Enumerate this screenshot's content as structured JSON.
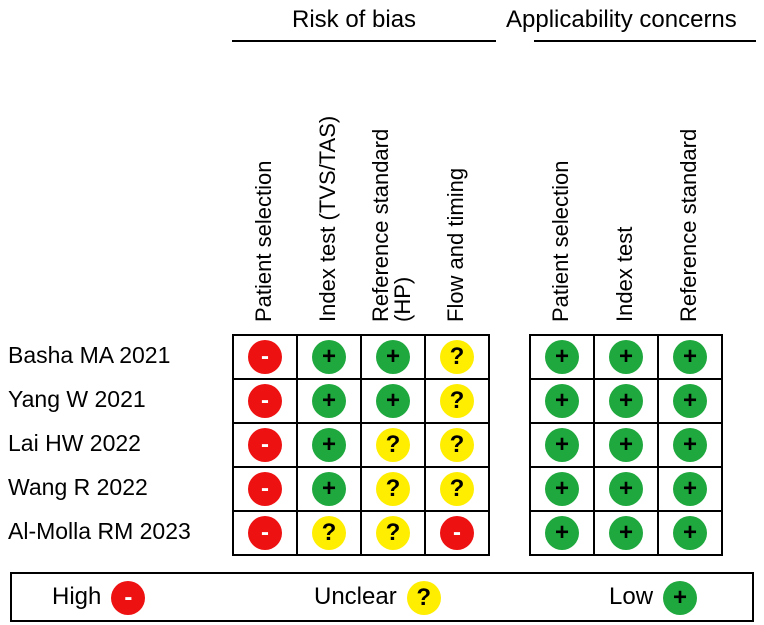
{
  "groups": {
    "risk": "Risk of bias",
    "applicability": "Applicability concerns"
  },
  "risk_columns": [
    "Patient selection",
    "Index test (TVS/TAS)",
    "Reference standard (HP)",
    "Flow and timing"
  ],
  "risk_columns_lines": [
    [
      "Patient selection"
    ],
    [
      "Index test (TVS/TAS)"
    ],
    [
      "Reference standard",
      "(HP)"
    ],
    [
      "Flow and timing"
    ]
  ],
  "applicability_columns": [
    "Patient selection",
    "Index test",
    "Reference standard"
  ],
  "studies": [
    {
      "name": "Basha MA 2021",
      "risk": [
        "high",
        "low",
        "low",
        "unclear"
      ],
      "applicability": [
        "low",
        "low",
        "low"
      ]
    },
    {
      "name": "Yang W 2021",
      "risk": [
        "high",
        "low",
        "low",
        "unclear"
      ],
      "applicability": [
        "low",
        "low",
        "low"
      ]
    },
    {
      "name": "Lai HW 2022",
      "risk": [
        "high",
        "low",
        "unclear",
        "unclear"
      ],
      "applicability": [
        "low",
        "low",
        "low"
      ]
    },
    {
      "name": "Wang R 2022",
      "risk": [
        "high",
        "low",
        "unclear",
        "unclear"
      ],
      "applicability": [
        "low",
        "low",
        "low"
      ]
    },
    {
      "name": "Al-Molla RM 2023",
      "risk": [
        "high",
        "unclear",
        "unclear",
        "high"
      ],
      "applicability": [
        "low",
        "low",
        "low"
      ]
    }
  ],
  "symbols": {
    "high": "-",
    "unclear": "?",
    "low": "+"
  },
  "legend": [
    {
      "key": "high",
      "label": "High"
    },
    {
      "key": "unclear",
      "label": "Unclear"
    },
    {
      "key": "low",
      "label": "Low"
    }
  ],
  "colors": {
    "high": "#ee1111",
    "unclear": "#ffee00",
    "low": "#1fa83e"
  }
}
